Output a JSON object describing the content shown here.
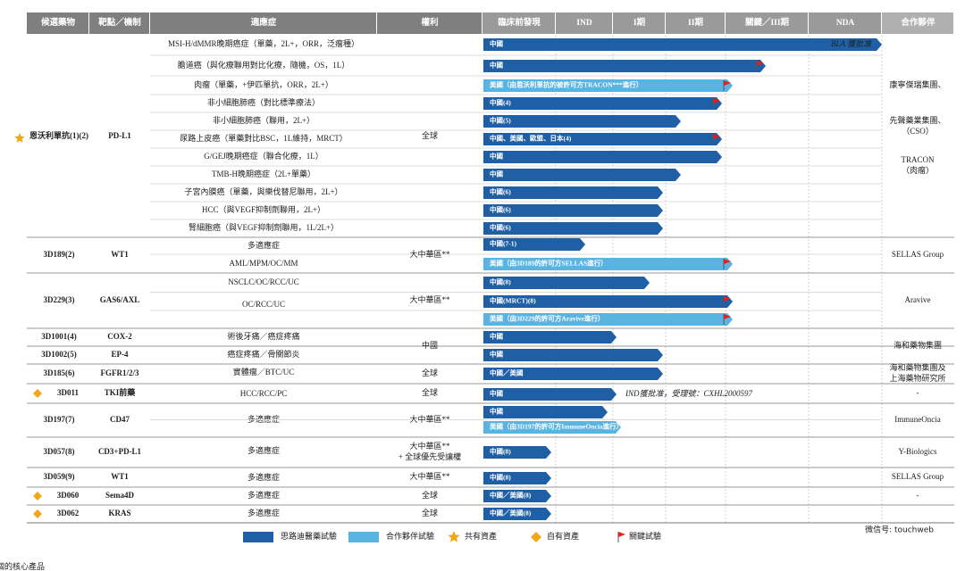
{
  "header": [
    "候選藥物",
    "靶點／機制",
    "適應症",
    "權利",
    "臨床前發現",
    "IND",
    "I期",
    "II期",
    "關鍵／III期",
    "NDA",
    "合作夥伴"
  ],
  "groups": [
    {
      "drug": "恩沃利單抗(1)(2)",
      "target": "PD-L1",
      "icon": "star",
      "rights": [
        "全球"
      ],
      "partner": [
        "康寧傑瑞集團、",
        "先聲藥業集團、",
        "（CSO）",
        "TRACON",
        "（肉瘤）"
      ],
      "indications": [
        "MSI-H/dMMR晚期癌症（單藥，2L+，ORR，泛瘤種）",
        "膽道癌（與化療聯用對比化療，隨機，OS，1L）",
        "肉瘤（單藥，+伊匹單抗，ORR，2L+）",
        "非小細胞肺癌（對比標準療法）",
        "非小細胞肺癌（聯用，2L+）",
        "尿路上皮癌（單藥對比BSC，1L維持，MRCT）",
        "G/GEJ晚期癌症（聯合化療，1L）",
        "TMB-H晚期癌症（2L+單藥）",
        "子宮內膜癌（單藥，與樂伐替尼聯用，2L+）",
        "HCC（與VEGF抑制劑聯用，2L+）",
        "腎細胞癌（與VEGF抑制劑聯用，1L/2L+）"
      ],
      "trials": [
        {
          "label": "中國",
          "color": "#1f5fa6",
          "note": "BLA 獲批准"
        },
        {
          "label": "中國",
          "color": "#1f5fa6",
          "pivotal": true
        },
        {
          "label": "美國（由恩沃利單抗的被許可方TRACON***進行）",
          "color": "#5ab4e2",
          "pivotal": true
        },
        {
          "label": "中國(4)",
          "color": "#1f5fa6",
          "pivotal": true
        },
        {
          "label": "中國(5)",
          "color": "#1f5fa6"
        },
        {
          "label": "中國、美國、歐盟、日本(4)",
          "color": "#1f5fa6",
          "pivotal": true
        },
        {
          "label": "中國",
          "color": "#1f5fa6"
        },
        {
          "label": "中國",
          "color": "#1f5fa6"
        },
        {
          "label": "中國(6)",
          "color": "#1f5fa6"
        },
        {
          "label": "中國(6)",
          "color": "#1f5fa6"
        },
        {
          "label": "中國(6)",
          "color": "#1f5fa6"
        }
      ]
    },
    {
      "drug": "3D189(2)",
      "target": "WT1",
      "rights": [
        "大中華區**"
      ],
      "partner": [
        "SELLAS Group"
      ],
      "indications": [
        "多適應症",
        "AML/MPM/OC/MM"
      ],
      "trials": [
        {
          "label": "中國(7-1)",
          "color": "#1f5fa6"
        },
        {
          "label": "美國（由3D189的許可方SELLAS進行）",
          "color": "#5ab4e2",
          "pivotal": true
        }
      ]
    },
    {
      "drug": "3D229(3)",
      "target": "GAS6/AXL",
      "rights": [
        "大中華區**"
      ],
      "partner": [
        "Aravive"
      ],
      "indications": [
        "NSCLC/OC/RCC/UC",
        "OC/RCC/UC"
      ],
      "trials": [
        {
          "label": "中國(8)",
          "color": "#1f5fa6"
        },
        {
          "label": "中國(MRCT)(8)",
          "color": "#1f5fa6",
          "pivotal": true
        },
        {
          "label": "美國（由3D229的許可方Aravive進行）",
          "color": "#5ab4e2",
          "pivotal": true
        }
      ]
    },
    {
      "drug": "3D1001(4)",
      "target": "COX-2",
      "rights": [
        "中國"
      ],
      "partner": [
        "海和藥物集團"
      ],
      "indications": [
        "術後牙痛／癌症疼痛"
      ],
      "trials": [
        {
          "label": "中國",
          "color": "#1f5fa6"
        }
      ]
    },
    {
      "drug": "3D1002(5)",
      "target": "EP-4",
      "indications": [
        "癌症疼痛／骨關節炎"
      ],
      "trials": [
        {
          "label": "中國",
          "color": "#1f5fa6"
        }
      ]
    },
    {
      "drug": "3D185(6)",
      "target": "FGFR1/2/3",
      "rights": [
        "全球"
      ],
      "partner": [
        "海和藥物集團及",
        "上海藥物研究所"
      ],
      "indications": [
        "實體瘤／BTC/UC"
      ],
      "trials": [
        {
          "label": "中國／美國",
          "color": "#1f5fa6"
        }
      ]
    },
    {
      "drug": "3D011",
      "target": "TKI前藥",
      "icon": "diamond",
      "rights": [
        "全球"
      ],
      "partner": [
        "-"
      ],
      "indications": [
        "HCC/RCC/PC"
      ],
      "trials": [
        {
          "label": "中國",
          "color": "#1f5fa6",
          "note": "IND獲批准，受理號：CXHL2000597"
        }
      ]
    },
    {
      "drug": "3D197(7)",
      "target": "CD47",
      "rights": [
        "大中華區**"
      ],
      "partner": [
        "ImmuneOncia"
      ],
      "indications": [
        "多適應症"
      ],
      "trials": [
        {
          "label": "中國",
          "color": "#1f5fa6"
        },
        {
          "label": "美國（由3D197的許可方ImmuneOncia進行）",
          "color": "#5ab4e2"
        }
      ]
    },
    {
      "drug": "3D057(8)",
      "target": "CD3+PD-L1",
      "rights": [
        "大中華區**",
        "+ 全球優先受讓權"
      ],
      "partner": [
        "Y-Biologics"
      ],
      "indications": [
        "多適應症"
      ],
      "trials": [
        {
          "label": "中國(8)",
          "color": "#1f5fa6"
        }
      ]
    },
    {
      "drug": "3D059(9)",
      "target": "WT1",
      "rights": [
        "大中華區**"
      ],
      "partner": [
        "SELLAS Group"
      ],
      "indications": [
        "多適應症"
      ],
      "trials": [
        {
          "label": "中國(8)",
          "color": "#1f5fa6"
        }
      ]
    },
    {
      "drug": "3D060",
      "target": "Sema4D",
      "icon": "diamond",
      "rights": [
        "全球"
      ],
      "partner": [
        "-"
      ],
      "indications": [
        "多適應症"
      ],
      "trials": [
        {
          "label": "中國／美國(8)",
          "color": "#1f5fa6"
        }
      ]
    },
    {
      "drug": "3D062",
      "target": "KRAS",
      "icon": "diamond",
      "rights": [
        "全球"
      ],
      "indications": [
        "多適應症"
      ],
      "trials": [
        {
          "label": "中國／美國(8)",
          "color": "#1f5fa6"
        }
      ]
    }
  ],
  "legend": [
    {
      "label": "思路迪醫藥試驗",
      "color": "#1f5fa6"
    },
    {
      "label": "合作夥伴試驗",
      "color": "#5ab4e2"
    },
    {
      "label": "共有資產",
      "icon": "star"
    },
    {
      "label": "自有資產",
      "icon": "diamond"
    },
    {
      "label": "關鍵試驗",
      "icon": "flag"
    }
  ],
  "watermark": "微信号: touchweb",
  "footer": "個的核心產品"
}
